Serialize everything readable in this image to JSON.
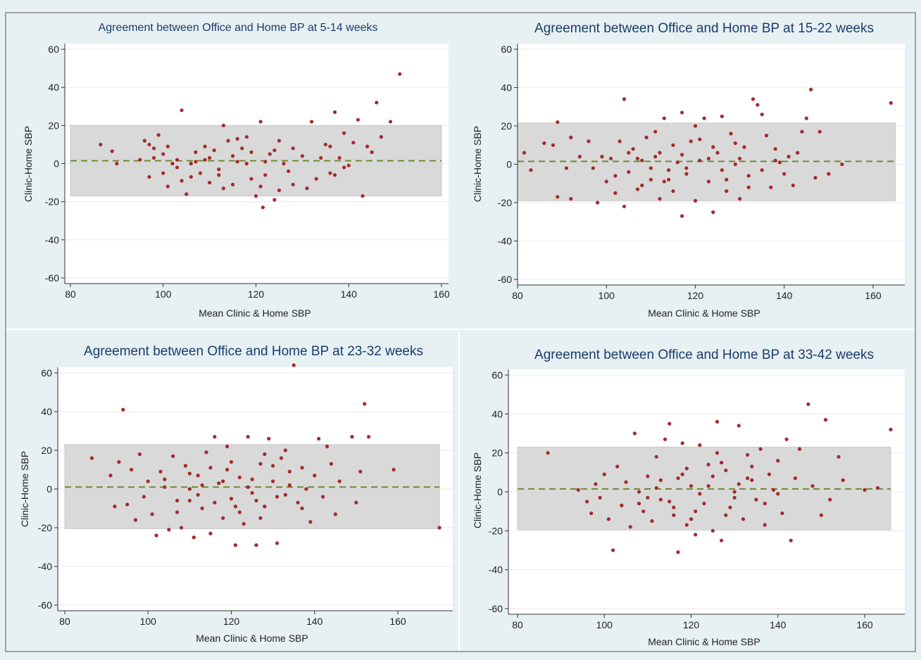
{
  "colors": {
    "background": "#e7f0f2",
    "plot_area": "#ffffff",
    "band": "#d9d9d9",
    "point": "#a52a2a",
    "mean_line": "#6e8a2e",
    "title": "#1a3c6e",
    "text": "#222222"
  },
  "chart_data": [
    {
      "type": "scatter",
      "title": "Agreement between Office and Home BP at 5-14 weeks",
      "xlabel": "Mean Clinic & Home SBP",
      "ylabel": "Clinic-Home SBP",
      "xlim": [
        80,
        160
      ],
      "ylim": [
        -60,
        60
      ],
      "xticks": [
        "80",
        "100",
        "120",
        "140",
        "160"
      ],
      "yticks": [
        "60",
        "40",
        "20",
        "0",
        "-20",
        "-40",
        "-60"
      ],
      "mean_difference": 1.5,
      "limits_of_agreement": [
        -17,
        20
      ],
      "grid": true,
      "points": [
        [
          86.5,
          10
        ],
        [
          89,
          6.5
        ],
        [
          90,
          0
        ],
        [
          95,
          2
        ],
        [
          96,
          12
        ],
        [
          97,
          10
        ],
        [
          98,
          8
        ],
        [
          99,
          15
        ],
        [
          100,
          -5
        ],
        [
          101,
          -12
        ],
        [
          102,
          0
        ],
        [
          103,
          2
        ],
        [
          104,
          28
        ],
        [
          105,
          -16
        ],
        [
          106,
          0
        ],
        [
          107,
          6
        ],
        [
          108,
          -5
        ],
        [
          109,
          2
        ],
        [
          110,
          -10
        ],
        [
          111,
          7
        ],
        [
          112,
          -3
        ],
        [
          113,
          20
        ],
        [
          114,
          12
        ],
        [
          115,
          -11
        ],
        [
          116,
          1
        ],
        [
          117,
          8
        ],
        [
          118,
          0
        ],
        [
          119,
          -8
        ],
        [
          120,
          -17
        ],
        [
          121,
          22
        ],
        [
          121.5,
          -23
        ],
        [
          122,
          1
        ],
        [
          123,
          5
        ],
        [
          124,
          -19
        ],
        [
          125,
          12
        ],
        [
          126,
          0
        ],
        [
          128,
          -11
        ],
        [
          130,
          4
        ],
        [
          132,
          22
        ],
        [
          133,
          -8
        ],
        [
          135,
          10
        ],
        [
          136,
          -5
        ],
        [
          137,
          27
        ],
        [
          138,
          3
        ],
        [
          139,
          16
        ],
        [
          140,
          -1
        ],
        [
          142,
          23
        ],
        [
          143,
          -17
        ],
        [
          145,
          6
        ],
        [
          146,
          32
        ],
        [
          147,
          14
        ],
        [
          149,
          22
        ],
        [
          151,
          47
        ],
        [
          97,
          -7
        ],
        [
          100,
          5
        ],
        [
          103,
          -2
        ],
        [
          106,
          -7
        ],
        [
          109,
          9
        ],
        [
          112,
          -6
        ],
        [
          115,
          4
        ],
        [
          118,
          14
        ],
        [
          121,
          -12
        ],
        [
          124,
          7
        ],
        [
          127,
          -4
        ],
        [
          131,
          -13
        ],
        [
          134,
          3
        ],
        [
          137,
          -6
        ],
        [
          141,
          11
        ],
        [
          144,
          9
        ],
        [
          98,
          3
        ],
        [
          101,
          9
        ],
        [
          104,
          -9
        ],
        [
          107,
          1
        ],
        [
          110,
          3
        ],
        [
          113,
          -13
        ],
        [
          116,
          13
        ],
        [
          119,
          6
        ],
        [
          122,
          -6
        ],
        [
          125,
          -14
        ],
        [
          128,
          8
        ],
        [
          136,
          9
        ],
        [
          139,
          -2
        ]
      ]
    },
    {
      "type": "scatter",
      "title": "Agreement between Office and Home BP at 15-22 weeks",
      "xlabel": "Mean Clinic & Home SBP",
      "ylabel": "Clinic-Home SBP",
      "xlim": [
        80,
        165
      ],
      "ylim": [
        -60,
        60
      ],
      "xticks": [
        "80",
        "100",
        "120",
        "140",
        "160"
      ],
      "yticks": [
        "60",
        "40",
        "20",
        "0",
        "-20",
        "-40",
        "-60"
      ],
      "mean_difference": 1.5,
      "limits_of_agreement": [
        -19,
        21.5
      ],
      "grid": true,
      "points": [
        [
          81.5,
          6
        ],
        [
          83,
          -3
        ],
        [
          86,
          11
        ],
        [
          88,
          10
        ],
        [
          89,
          22
        ],
        [
          89,
          -17
        ],
        [
          91,
          -2
        ],
        [
          92,
          14
        ],
        [
          92,
          -18
        ],
        [
          94,
          4
        ],
        [
          96,
          12
        ],
        [
          97,
          -2
        ],
        [
          98,
          -20
        ],
        [
          99,
          4
        ],
        [
          100,
          -9
        ],
        [
          101,
          3
        ],
        [
          102,
          -15
        ],
        [
          103,
          12
        ],
        [
          104,
          34
        ],
        [
          104,
          -22
        ],
        [
          105,
          -4
        ],
        [
          106,
          8
        ],
        [
          107,
          -13
        ],
        [
          108,
          2
        ],
        [
          109,
          14
        ],
        [
          110,
          -8
        ],
        [
          111,
          4
        ],
        [
          112,
          -18
        ],
        [
          113,
          24
        ],
        [
          114,
          -3
        ],
        [
          115,
          10
        ],
        [
          116,
          1
        ],
        [
          117,
          -27
        ],
        [
          117,
          27
        ],
        [
          118,
          -5
        ],
        [
          119,
          12
        ],
        [
          120,
          -19
        ],
        [
          121,
          2
        ],
        [
          122,
          24
        ],
        [
          123,
          -9
        ],
        [
          124,
          -25
        ],
        [
          125,
          6
        ],
        [
          126,
          25
        ],
        [
          127,
          -14
        ],
        [
          128,
          16
        ],
        [
          129,
          0
        ],
        [
          130,
          -18
        ],
        [
          131,
          9
        ],
        [
          132,
          -6
        ],
        [
          133,
          34
        ],
        [
          134,
          31
        ],
        [
          135,
          -3
        ],
        [
          136,
          15
        ],
        [
          137,
          -12
        ],
        [
          138,
          8
        ],
        [
          139,
          1
        ],
        [
          140,
          -5
        ],
        [
          141,
          4
        ],
        [
          142,
          -11
        ],
        [
          143,
          6
        ],
        [
          144,
          17
        ],
        [
          145,
          24
        ],
        [
          146,
          39
        ],
        [
          147,
          -7
        ],
        [
          148,
          17
        ],
        [
          150,
          -5
        ],
        [
          153,
          0
        ],
        [
          164,
          32
        ],
        [
          102,
          -6
        ],
        [
          105,
          6
        ],
        [
          108,
          -11
        ],
        [
          111,
          17
        ],
        [
          114,
          -8
        ],
        [
          117,
          5
        ],
        [
          120,
          20
        ],
        [
          123,
          3
        ],
        [
          126,
          -3
        ],
        [
          129,
          11
        ],
        [
          132,
          -12
        ],
        [
          135,
          26
        ],
        [
          138,
          2
        ],
        [
          112,
          6
        ],
        [
          115,
          -14
        ],
        [
          118,
          -2
        ],
        [
          121,
          13
        ],
        [
          124,
          9
        ],
        [
          127,
          -8
        ],
        [
          130,
          3
        ],
        [
          107,
          3
        ],
        [
          110,
          -2
        ],
        [
          113,
          -9
        ]
      ]
    },
    {
      "type": "scatter",
      "title": "Agreement between Office and Home BP at 23-32 weeks",
      "xlabel": "Mean Clinic & Home SBP",
      "ylabel": "Clinic-Home SBP",
      "xlim": [
        80,
        170
      ],
      "ylim": [
        -60,
        60
      ],
      "xticks": [
        "80",
        "100",
        "120",
        "140",
        "160"
      ],
      "yticks": [
        "60",
        "40",
        "20",
        "0",
        "-20",
        "-40",
        "-60"
      ],
      "mean_difference": 1,
      "limits_of_agreement": [
        -20.5,
        23
      ],
      "grid": true,
      "points": [
        [
          86.5,
          16
        ],
        [
          91,
          7
        ],
        [
          92,
          -9
        ],
        [
          93,
          14
        ],
        [
          94,
          41
        ],
        [
          95,
          -8
        ],
        [
          96,
          10
        ],
        [
          97,
          -16
        ],
        [
          98,
          18
        ],
        [
          99,
          -4
        ],
        [
          100,
          4
        ],
        [
          101,
          -13
        ],
        [
          102,
          -24
        ],
        [
          103,
          9
        ],
        [
          104,
          1
        ],
        [
          105,
          -21
        ],
        [
          106,
          17
        ],
        [
          107,
          -6
        ],
        [
          108,
          -20
        ],
        [
          109,
          12
        ],
        [
          110,
          0
        ],
        [
          111,
          -25
        ],
        [
          112,
          7
        ],
        [
          113,
          -10
        ],
        [
          114,
          19
        ],
        [
          115,
          -23
        ],
        [
          116,
          27
        ],
        [
          117,
          3
        ],
        [
          118,
          -15
        ],
        [
          119,
          22
        ],
        [
          120,
          -5
        ],
        [
          121,
          -29
        ],
        [
          122,
          6
        ],
        [
          123,
          -18
        ],
        [
          124,
          27
        ],
        [
          125,
          -2
        ],
        [
          126,
          -29
        ],
        [
          127,
          13
        ],
        [
          128,
          -9
        ],
        [
          129,
          26
        ],
        [
          130,
          4
        ],
        [
          131,
          -28
        ],
        [
          132,
          16
        ],
        [
          133,
          -3
        ],
        [
          134,
          9
        ],
        [
          135,
          64
        ],
        [
          136,
          -7
        ],
        [
          137,
          11
        ],
        [
          138,
          0
        ],
        [
          139,
          -17
        ],
        [
          140,
          7
        ],
        [
          141,
          26
        ],
        [
          142,
          -4
        ],
        [
          143,
          22
        ],
        [
          144,
          13
        ],
        [
          145,
          -13
        ],
        [
          146,
          4
        ],
        [
          149,
          27
        ],
        [
          150,
          -7
        ],
        [
          151,
          9
        ],
        [
          152,
          44
        ],
        [
          153,
          27
        ],
        [
          159,
          10
        ],
        [
          170,
          -20
        ],
        [
          110,
          8
        ],
        [
          113,
          2
        ],
        [
          116,
          -7
        ],
        [
          119,
          10
        ],
        [
          122,
          -12
        ],
        [
          125,
          5
        ],
        [
          128,
          18
        ],
        [
          131,
          -4
        ],
        [
          134,
          2
        ],
        [
          137,
          -10
        ],
        [
          112,
          -3
        ],
        [
          115,
          11
        ],
        [
          118,
          4
        ],
        [
          121,
          -9
        ],
        [
          124,
          1
        ],
        [
          127,
          -15
        ],
        [
          130,
          12
        ],
        [
          104,
          5
        ],
        [
          107,
          -12
        ],
        [
          110,
          -6
        ],
        [
          120,
          14
        ],
        [
          126,
          -6
        ],
        [
          133,
          20
        ]
      ]
    },
    {
      "type": "scatter",
      "title": "Agreement between Office and Home BP at 33-42 weeks",
      "xlabel": "Mean Clinic & Home SBP",
      "ylabel": "Clinic-Home SBP",
      "xlim": [
        80,
        166
      ],
      "ylim": [
        -60,
        60
      ],
      "xticks": [
        "80",
        "100",
        "120",
        "140",
        "160"
      ],
      "yticks": [
        "60",
        "40",
        "20",
        "0",
        "-20",
        "-40",
        "-60"
      ],
      "mean_difference": 1.5,
      "limits_of_agreement": [
        -19.5,
        23
      ],
      "grid": true,
      "points": [
        [
          87,
          20
        ],
        [
          94,
          1
        ],
        [
          96,
          -5
        ],
        [
          97,
          -11
        ],
        [
          98,
          4
        ],
        [
          99,
          -3
        ],
        [
          100,
          9
        ],
        [
          101,
          -14
        ],
        [
          102,
          -30
        ],
        [
          103,
          13
        ],
        [
          104,
          -7
        ],
        [
          105,
          5
        ],
        [
          106,
          -18
        ],
        [
          107,
          30
        ],
        [
          108,
          0
        ],
        [
          109,
          -10
        ],
        [
          110,
          8
        ],
        [
          111,
          -15
        ],
        [
          112,
          18
        ],
        [
          113,
          -4
        ],
        [
          114,
          27
        ],
        [
          115,
          35
        ],
        [
          116,
          -12
        ],
        [
          117,
          -31
        ],
        [
          117,
          7
        ],
        [
          118,
          25
        ],
        [
          119,
          -17
        ],
        [
          120,
          3
        ],
        [
          121,
          -22
        ],
        [
          122,
          24
        ],
        [
          123,
          -6
        ],
        [
          124,
          14
        ],
        [
          125,
          -20
        ],
        [
          126,
          36
        ],
        [
          127,
          -25
        ],
        [
          128,
          11
        ],
        [
          129,
          -8
        ],
        [
          130,
          0
        ],
        [
          131,
          34
        ],
        [
          132,
          -14
        ],
        [
          133,
          19
        ],
        [
          134,
          6
        ],
        [
          135,
          -4
        ],
        [
          136,
          22
        ],
        [
          137,
          -17
        ],
        [
          138,
          9
        ],
        [
          139,
          1
        ],
        [
          140,
          16
        ],
        [
          141,
          -11
        ],
        [
          142,
          27
        ],
        [
          143,
          -25
        ],
        [
          144,
          7
        ],
        [
          145,
          22
        ],
        [
          147,
          45
        ],
        [
          148,
          3
        ],
        [
          150,
          -12
        ],
        [
          151,
          37
        ],
        [
          152,
          -4
        ],
        [
          154,
          18
        ],
        [
          155,
          6
        ],
        [
          160,
          1
        ],
        [
          163,
          2
        ],
        [
          166,
          32
        ],
        [
          110,
          -3
        ],
        [
          113,
          6
        ],
        [
          116,
          -8
        ],
        [
          119,
          12
        ],
        [
          122,
          -1
        ],
        [
          125,
          8
        ],
        [
          128,
          -12
        ],
        [
          131,
          4
        ],
        [
          134,
          13
        ],
        [
          137,
          -6
        ],
        [
          112,
          2
        ],
        [
          115,
          -5
        ],
        [
          118,
          9
        ],
        [
          121,
          -10
        ],
        [
          124,
          3
        ],
        [
          127,
          15
        ],
        [
          130,
          -3
        ],
        [
          133,
          7
        ],
        [
          108,
          -6
        ],
        [
          120,
          -14
        ],
        [
          126,
          20
        ],
        [
          140,
          -1
        ]
      ]
    }
  ]
}
